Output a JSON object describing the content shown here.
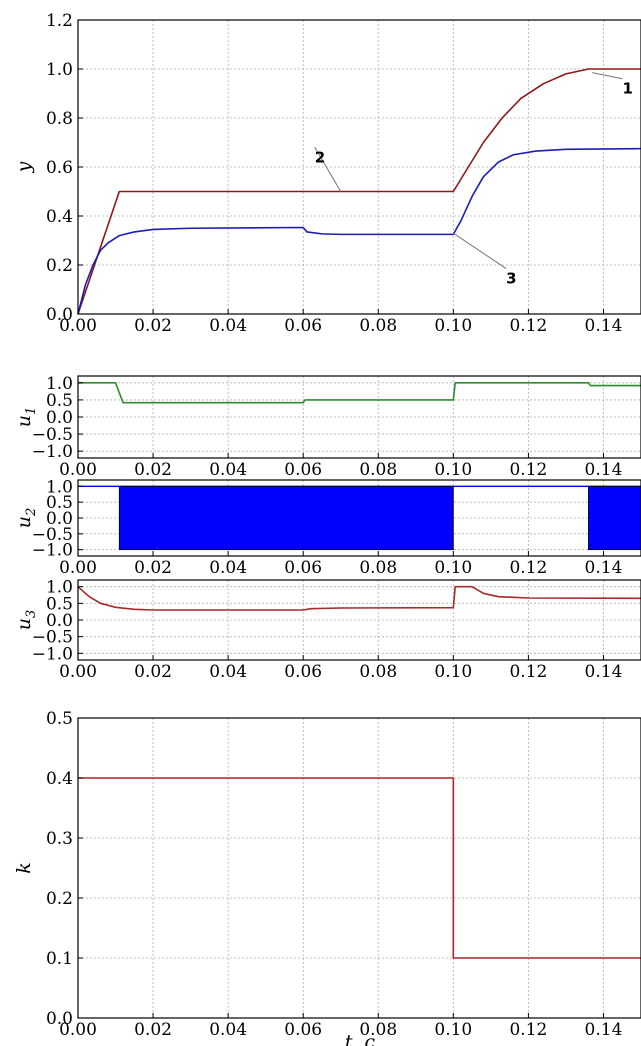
{
  "chart_data": [
    {
      "id": "y",
      "type": "line",
      "ylabel": "y",
      "xlim": [
        0,
        0.15
      ],
      "ylim": [
        0,
        1.2
      ],
      "x_ticks": [
        "0.00",
        "0.02",
        "0.04",
        "0.06",
        "0.08",
        "0.10",
        "0.12",
        "0.14"
      ],
      "y_ticks": [
        "0.0",
        "0.2",
        "0.4",
        "0.6",
        "0.8",
        "1.0",
        "1.2"
      ],
      "grid": true,
      "series": [
        {
          "color": "#8b1a1a",
          "points": [
            [
              0,
              0
            ],
            [
              0.011,
              0.5
            ],
            [
              0.1,
              0.5
            ],
            [
              0.104,
              0.6
            ],
            [
              0.108,
              0.7
            ],
            [
              0.113,
              0.8
            ],
            [
              0.118,
              0.88
            ],
            [
              0.124,
              0.94
            ],
            [
              0.13,
              0.98
            ],
            [
              0.136,
              1.0
            ],
            [
              0.15,
              1.0
            ]
          ]
        },
        {
          "color": "#1c1cb4",
          "points": [
            [
              0,
              0
            ],
            [
              0.002,
              0.12
            ],
            [
              0.004,
              0.2
            ],
            [
              0.006,
              0.26
            ],
            [
              0.008,
              0.29
            ],
            [
              0.011,
              0.32
            ],
            [
              0.015,
              0.335
            ],
            [
              0.02,
              0.345
            ],
            [
              0.03,
              0.35
            ],
            [
              0.06,
              0.353
            ],
            [
              0.061,
              0.335
            ],
            [
              0.065,
              0.327
            ],
            [
              0.07,
              0.325
            ],
            [
              0.1,
              0.325
            ],
            [
              0.102,
              0.38
            ],
            [
              0.105,
              0.48
            ],
            [
              0.108,
              0.56
            ],
            [
              0.112,
              0.62
            ],
            [
              0.116,
              0.65
            ],
            [
              0.122,
              0.665
            ],
            [
              0.13,
              0.672
            ],
            [
              0.15,
              0.675
            ]
          ]
        }
      ],
      "annotations": [
        {
          "text": "1",
          "x": 0.144,
          "y": 0.94,
          "target": [
            0.137,
            0.985
          ]
        },
        {
          "text": "2",
          "x": 0.062,
          "y": 0.66,
          "target": [
            0.07,
            0.5
          ]
        },
        {
          "text": "3",
          "x": 0.113,
          "y": 0.165,
          "target": [
            0.1,
            0.33
          ]
        }
      ]
    },
    {
      "id": "u1",
      "type": "line",
      "ylabel": "u1",
      "xlim": [
        0,
        0.15
      ],
      "ylim": [
        -1.2,
        1.2
      ],
      "x_ticks": [
        "0.00",
        "0.02",
        "0.04",
        "0.06",
        "0.08",
        "0.10",
        "0.12",
        "0.14"
      ],
      "y_ticks": [
        "−1.0",
        "−0.5",
        "0.0",
        "0.5",
        "1.0"
      ],
      "grid": true,
      "series": [
        {
          "color": "#2e8b2e",
          "points": [
            [
              0,
              1.0
            ],
            [
              0.01,
              1.0
            ],
            [
              0.012,
              0.42
            ],
            [
              0.06,
              0.42
            ],
            [
              0.0605,
              0.5
            ],
            [
              0.1,
              0.5
            ],
            [
              0.1005,
              1.0
            ],
            [
              0.136,
              1.0
            ],
            [
              0.1365,
              0.92
            ],
            [
              0.15,
              0.92
            ]
          ]
        }
      ]
    },
    {
      "id": "u2",
      "type": "area",
      "ylabel": "u2",
      "xlim": [
        0,
        0.15
      ],
      "ylim": [
        -1.2,
        1.2
      ],
      "x_ticks": [
        "0.00",
        "0.02",
        "0.04",
        "0.06",
        "0.08",
        "0.10",
        "0.12",
        "0.14"
      ],
      "y_ticks": [
        "−1.0",
        "−0.5",
        "0.0",
        "0.5",
        "1.0"
      ],
      "grid": true,
      "color": "#0000ff",
      "baseline": 1.0,
      "switching_intervals": [
        [
          0.011,
          0.1
        ],
        [
          0.136,
          0.15
        ]
      ]
    },
    {
      "id": "u3",
      "type": "line",
      "ylabel": "u3",
      "xlim": [
        0,
        0.15
      ],
      "ylim": [
        -1.2,
        1.2
      ],
      "x_ticks": [
        "0.00",
        "0.02",
        "0.04",
        "0.06",
        "0.08",
        "0.10",
        "0.12",
        "0.14"
      ],
      "y_ticks": [
        "−1.0",
        "−0.5",
        "0.0",
        "0.5",
        "1.0"
      ],
      "grid": true,
      "series": [
        {
          "color": "#a52a2a",
          "points": [
            [
              0,
              1.0
            ],
            [
              0.003,
              0.7
            ],
            [
              0.006,
              0.5
            ],
            [
              0.01,
              0.38
            ],
            [
              0.015,
              0.32
            ],
            [
              0.02,
              0.3
            ],
            [
              0.06,
              0.3
            ],
            [
              0.062,
              0.34
            ],
            [
              0.07,
              0.36
            ],
            [
              0.1,
              0.37
            ],
            [
              0.1005,
              1.0
            ],
            [
              0.105,
              1.0
            ],
            [
              0.108,
              0.8
            ],
            [
              0.112,
              0.7
            ],
            [
              0.12,
              0.66
            ],
            [
              0.15,
              0.65
            ]
          ]
        }
      ]
    },
    {
      "id": "k",
      "type": "line",
      "ylabel": "k",
      "xlabel": "t, c",
      "xlim": [
        0,
        0.15
      ],
      "ylim": [
        0,
        0.5
      ],
      "x_ticks": [
        "0.00",
        "0.02",
        "0.04",
        "0.06",
        "0.08",
        "0.10",
        "0.12",
        "0.14"
      ],
      "y_ticks": [
        "0.0",
        "0.1",
        "0.2",
        "0.3",
        "0.4",
        "0.5"
      ],
      "grid": true,
      "series": [
        {
          "color": "#b22222",
          "points": [
            [
              0,
              0.4
            ],
            [
              0.1,
              0.4
            ],
            [
              0.1,
              0.1
            ],
            [
              0.15,
              0.1
            ]
          ]
        }
      ]
    }
  ]
}
